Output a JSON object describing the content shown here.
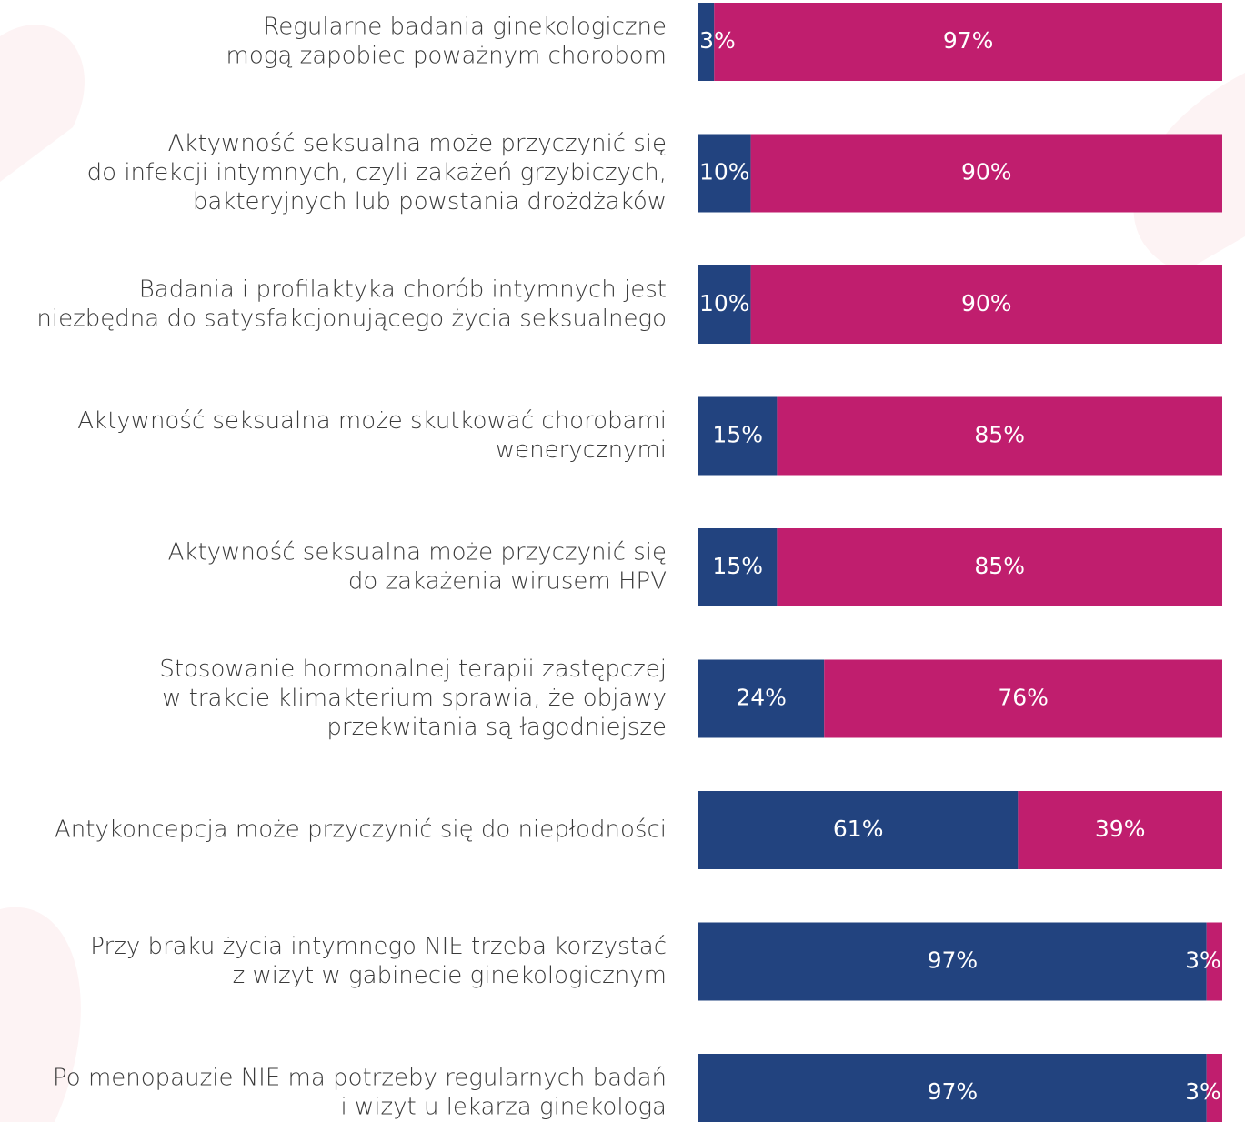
{
  "chart_data": {
    "type": "stacked-barh",
    "categories": [
      [
        "Regularne badania ginekologiczne",
        "mogą zapobiec poważnym chorobom"
      ],
      [
        "Aktywność seksualna może przyczynić się",
        "do infekcji intymnych, czyli zakażeń grzybiczych,",
        "bakteryjnych lub powstania drożdżaków"
      ],
      [
        "Badania i profilaktyka chorób intymnych jest",
        "niezbędna do satysfakcjonującego życia seksualnego"
      ],
      [
        "Aktywność seksualna może skutkować chorobami",
        "wenerycznymi"
      ],
      [
        "Aktywność seksualna może przyczynić się",
        "do zakażenia wirusem HPV"
      ],
      [
        "Stosowanie hormonalnej terapii zastępczej",
        "w trakcie klimakterium sprawia, że objawy",
        "przekwitania są łagodniejsze"
      ],
      [
        "Antykoncepcja może przyczynić się do niepłodności"
      ],
      [
        "Przy braku życia intymnego NIE trzeba korzystać",
        "z wizyt w gabinecie ginekologicznym"
      ],
      [
        "Po menopauzie NIE ma potrzeby regularnych badań",
        "i wizyt u lekarza ginekologa"
      ]
    ],
    "series": [
      {
        "color": "#22437f",
        "values": [
          3,
          10,
          10,
          15,
          15,
          24,
          61,
          97,
          97
        ],
        "value_labels": [
          "3%",
          "10%",
          "10%",
          "15%",
          "15%",
          "24%",
          "61%",
          "97%",
          "97%"
        ]
      },
      {
        "color": "#c01e6e",
        "values": [
          97,
          90,
          90,
          85,
          85,
          76,
          39,
          3,
          3
        ],
        "value_labels": [
          "97%",
          "90%",
          "90%",
          "85%",
          "85%",
          "76%",
          "39%",
          "3%",
          "3%"
        ]
      }
    ],
    "xlim": [
      0,
      100
    ]
  }
}
